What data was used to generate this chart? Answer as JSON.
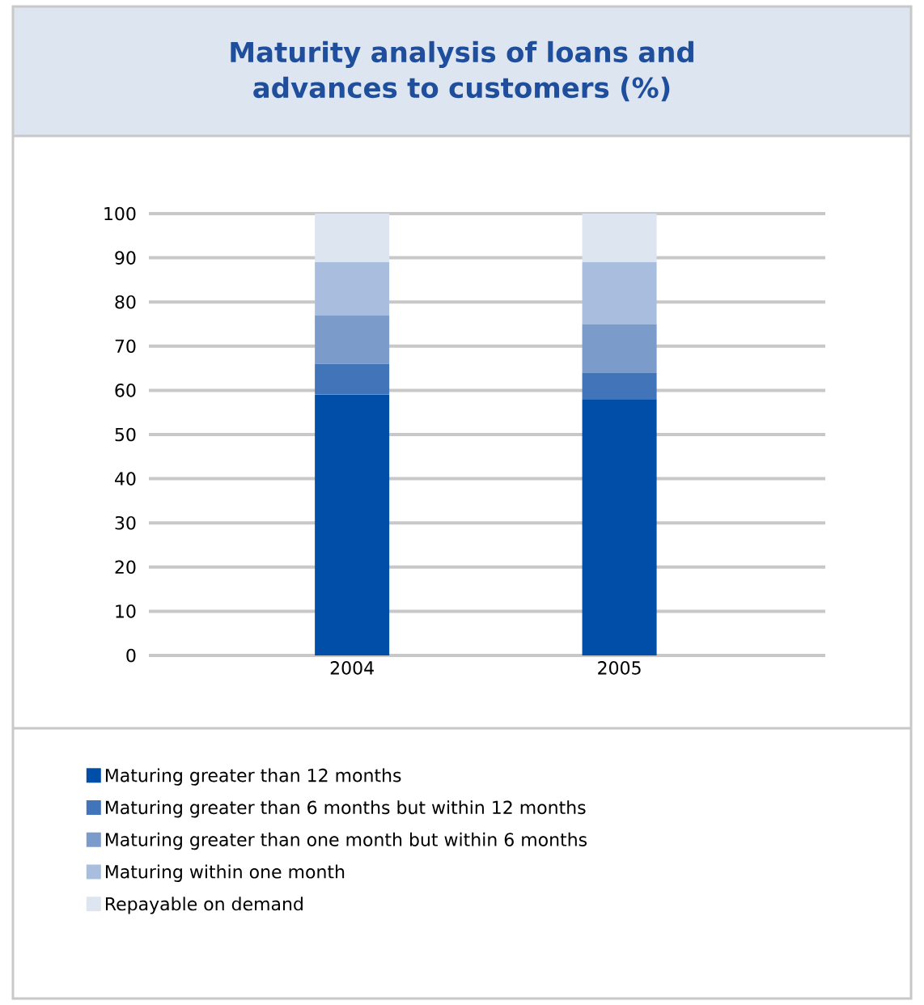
{
  "chart_data": {
    "type": "bar",
    "stacked": true,
    "title": "Maturity analysis of loans and advances to customers (%)",
    "categories": [
      "2004",
      "2005"
    ],
    "series": [
      {
        "name": "Maturing greater than 12 months",
        "color": "#004ea8",
        "values": [
          59,
          58
        ]
      },
      {
        "name": "Maturing greater than 6 months but within 12 months",
        "color": "#4274b9",
        "values": [
          7,
          6
        ]
      },
      {
        "name": "Maturing greater than one month but within 6 months",
        "color": "#7b9bcb",
        "values": [
          11,
          11
        ]
      },
      {
        "name": "Maturing within one month",
        "color": "#a9bedf",
        "values": [
          12,
          14
        ]
      },
      {
        "name": "Repayable on demand",
        "color": "#dde5f0",
        "values": [
          11,
          11
        ]
      }
    ],
    "ylim": [
      0,
      100
    ],
    "yticks": [
      0,
      10,
      20,
      30,
      40,
      50,
      60,
      70,
      80,
      90,
      100
    ],
    "grid": "y",
    "legend": "bottom left"
  }
}
